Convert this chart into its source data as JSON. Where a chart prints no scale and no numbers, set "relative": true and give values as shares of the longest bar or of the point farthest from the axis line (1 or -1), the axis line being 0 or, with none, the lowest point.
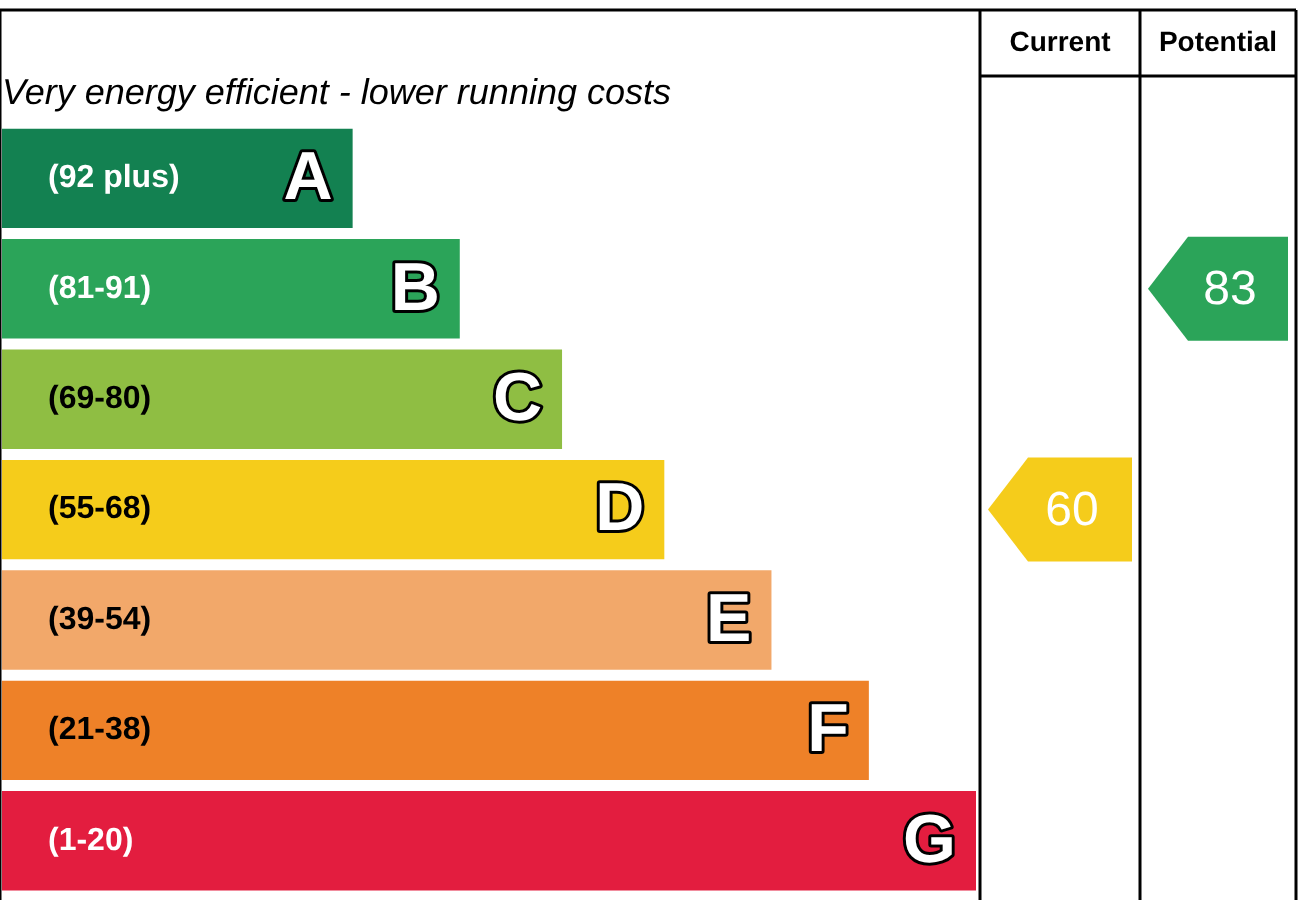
{
  "chart_data": {
    "type": "bar",
    "orientation": "horizontal",
    "relative": true,
    "title": "Very energy efficient - lower running costs",
    "categories": [
      "A",
      "B",
      "C",
      "D",
      "E",
      "F",
      "G"
    ],
    "values": [
      0.36,
      0.47,
      0.575,
      0.68,
      0.79,
      0.89,
      1
    ],
    "colors": [
      "#138151",
      "#2ba459",
      "#8fbe43",
      "#f5cc1b",
      "#f2a86a",
      "#ee8128",
      "#e31d3f"
    ],
    "annotations": [
      "Current",
      "Potential",
      "(92 plus)",
      "(81-91)",
      "(69-80)",
      "(55-68)",
      "(39-54)",
      "(21-38)",
      "(1-20)",
      "60",
      "83"
    ],
    "legend": false,
    "tick_labels": false
  }
}
